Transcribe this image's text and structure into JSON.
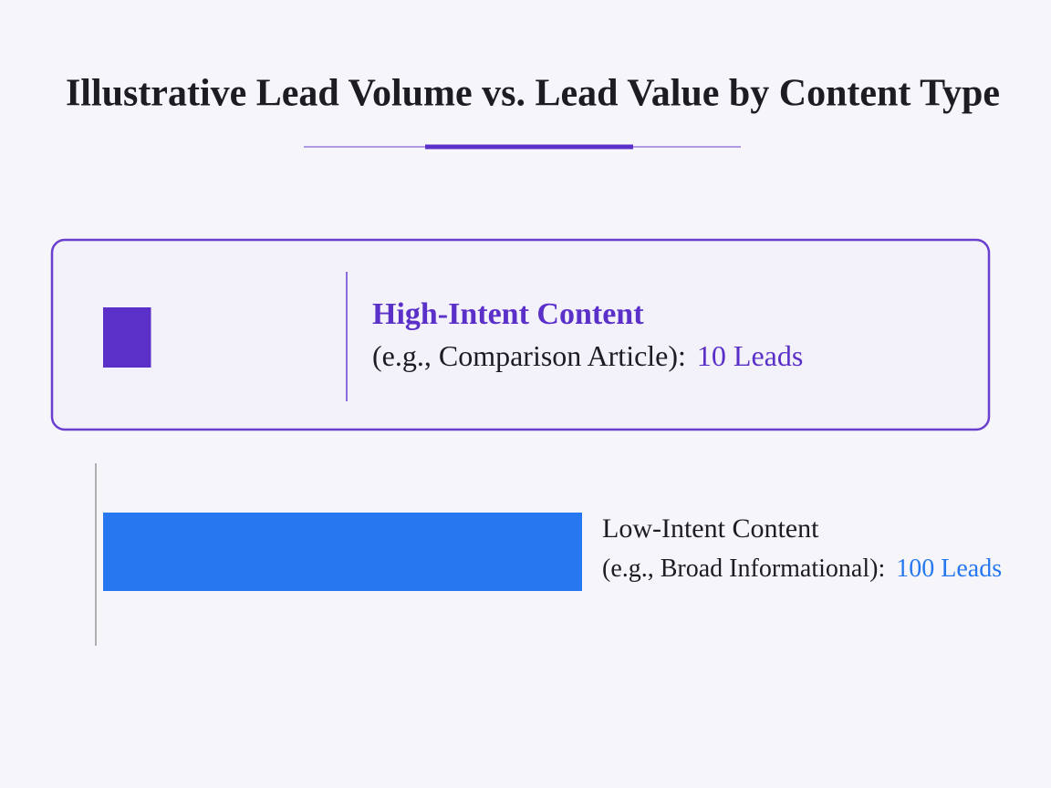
{
  "chart_data": {
    "type": "bar",
    "orientation": "horizontal",
    "title": "Illustrative Lead Volume vs. Lead Value by Content Type",
    "categories": [
      "High-Intent Content",
      "Low-Intent Content"
    ],
    "category_notes": [
      "(e.g., Comparison Article):",
      "(e.g., Broad Informational):"
    ],
    "values": [
      10,
      100
    ],
    "value_labels": [
      "10 Leads",
      "100 Leads"
    ],
    "colors": [
      "#5b30c9",
      "#2778f0"
    ],
    "xlim": [
      0,
      100
    ]
  }
}
